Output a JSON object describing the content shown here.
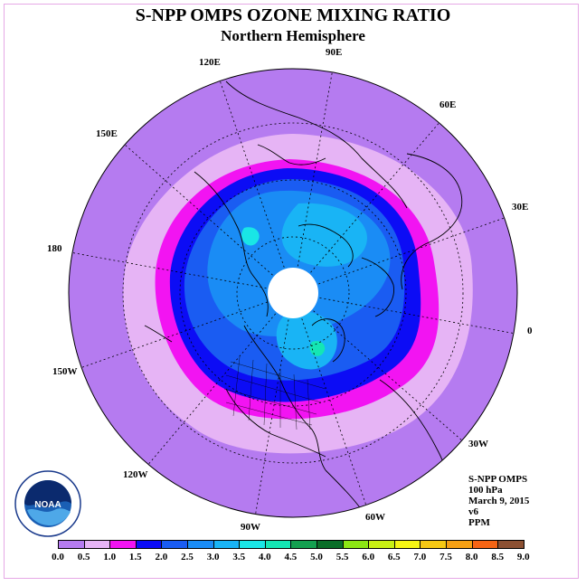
{
  "title": "S-NPP OMPS OZONE MIXING RATIO",
  "subtitle": "Northern Hemisphere",
  "longitude_labels": {
    "e90": "90E",
    "e60": "60E",
    "e30": "30E",
    "zero": "0",
    "w30": "30W",
    "w60": "60W",
    "w90": "90W",
    "w120": "120W",
    "w150": "150W",
    "d180": "180",
    "e150": "150E",
    "e120": "120E"
  },
  "info": {
    "instrument": "S-NPP OMPS",
    "level": "100 hPa",
    "date": "March 9, 2015",
    "version": "v6",
    "units": "PPM"
  },
  "logo_text": "NOAA",
  "colorbar": {
    "labels": [
      "0.0",
      "0.5",
      "1.0",
      "1.5",
      "2.0",
      "2.5",
      "3.0",
      "3.5",
      "4.0",
      "4.5",
      "5.0",
      "5.5",
      "6.0",
      "6.5",
      "7.0",
      "7.5",
      "8.0",
      "8.5",
      "9.0"
    ],
    "colors": [
      "#b57bf0",
      "#e6b4f5",
      "#f214f2",
      "#0c0cf5",
      "#1a5cf2",
      "#1a8cf5",
      "#19b4f5",
      "#19e6e6",
      "#14e6b4",
      "#14a050",
      "#0a6e28",
      "#8ce614",
      "#c8f014",
      "#f5f514",
      "#f5c814",
      "#f5a014",
      "#f56414",
      "#f50a0a",
      "#8c5032"
    ]
  }
}
